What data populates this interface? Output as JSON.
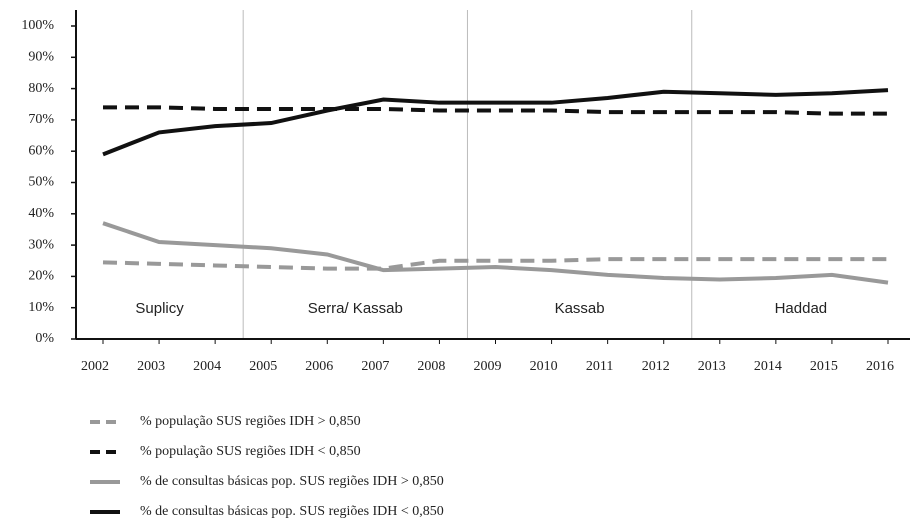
{
  "chart_data": {
    "type": "line",
    "categories": [
      "2002",
      "2003",
      "2004",
      "2005",
      "2006",
      "2007",
      "2008",
      "2009",
      "2010",
      "2011",
      "2012",
      "2013",
      "2014",
      "2015",
      "2016"
    ],
    "ylim": [
      0,
      100
    ],
    "yticks": [
      {
        "value": 0,
        "label": "0%"
      },
      {
        "value": 10,
        "label": "10%"
      },
      {
        "value": 20,
        "label": "20%"
      },
      {
        "value": 30,
        "label": "30%"
      },
      {
        "value": 40,
        "label": "40%"
      },
      {
        "value": 50,
        "label": "50%"
      },
      {
        "value": 60,
        "label": "60%"
      },
      {
        "value": 70,
        "label": "70%"
      },
      {
        "value": 80,
        "label": "80%"
      },
      {
        "value": 90,
        "label": "90%"
      },
      {
        "value": 100,
        "label": "100%"
      }
    ],
    "periods": [
      {
        "label": "Suplicy",
        "start": "2002",
        "end": "2004"
      },
      {
        "label": "Serra/ Kassab",
        "start": "2005",
        "end": "2008"
      },
      {
        "label": "Kassab",
        "start": "2009",
        "end": "2012"
      },
      {
        "label": "Haddad",
        "start": "2013",
        "end": "2016"
      }
    ],
    "series": [
      {
        "name": "% população SUS regiões IDH > 0,850",
        "color": "#999999",
        "style": "dashed",
        "values": [
          24.5,
          24,
          23.5,
          23,
          22.5,
          22.5,
          25,
          25,
          25,
          25.5,
          25.5,
          25.5,
          25.5,
          25.5,
          25.5
        ]
      },
      {
        "name": "% população SUS regiões IDH < 0,850",
        "color": "#111111",
        "style": "dashed",
        "values": [
          74,
          74,
          73.5,
          73.5,
          73.5,
          73.5,
          73,
          73,
          73,
          72.5,
          72.5,
          72.5,
          72.5,
          72,
          72
        ]
      },
      {
        "name": "% de consultas básicas pop. SUS regiões IDH > 0,850",
        "color": "#999999",
        "style": "solid",
        "values": [
          37,
          31,
          30,
          29,
          27,
          22,
          22.5,
          23,
          22,
          20.5,
          19.5,
          19,
          19.5,
          20.5,
          18
        ]
      },
      {
        "name": "% de consultas básicas pop. SUS regiões IDH < 0,850",
        "color": "#111111",
        "style": "solid",
        "values": [
          59,
          66,
          68,
          69,
          73,
          76.5,
          75.5,
          75.5,
          75.5,
          77,
          79,
          78.5,
          78,
          78.5,
          79.5
        ]
      }
    ]
  }
}
